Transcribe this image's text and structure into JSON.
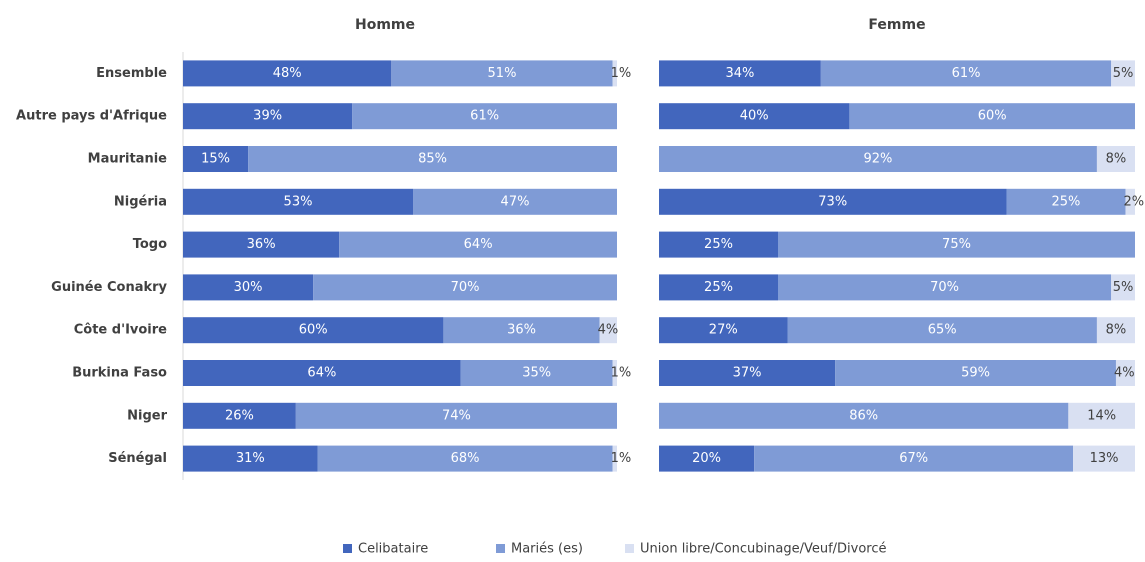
{
  "chart_data": [
    {
      "type": "stacked-bar-horizontal",
      "title": "Homme",
      "categories": [
        "Ensemble",
        "Autre pays d'Afrique",
        "Mauritanie",
        "Nigéria",
        "Togo",
        "Guinée Conakry",
        "Côte d'Ivoire",
        "Burkina Faso",
        "Niger",
        "Sénégal"
      ],
      "xlim": [
        0,
        100
      ],
      "series": [
        {
          "name": "Celibataire",
          "color": "#4266bd",
          "values": [
            48,
            39,
            15,
            53,
            36,
            30,
            60,
            64,
            26,
            31
          ],
          "value_labels": [
            "48%",
            "39%",
            "15%",
            "53%",
            "36%",
            "30%",
            "60%",
            "64%",
            "26%",
            "31%"
          ]
        },
        {
          "name": "Mariés (es)",
          "color": "#7f9bd6",
          "values": [
            51,
            61,
            85,
            47,
            64,
            70,
            36,
            35,
            74,
            68
          ],
          "value_labels": [
            "51%",
            "61%",
            "85%",
            "47%",
            "64%",
            "70%",
            "36%",
            "35%",
            "74%",
            "68%"
          ]
        },
        {
          "name": "Union libre/Concubinage/Veuf/Divorcé",
          "color": "#d9e0f2",
          "values": [
            1,
            null,
            null,
            null,
            null,
            null,
            4,
            1,
            null,
            1
          ],
          "value_labels": [
            "1%",
            null,
            null,
            null,
            null,
            null,
            "4%",
            "1%",
            null,
            "1%"
          ]
        }
      ]
    },
    {
      "type": "stacked-bar-horizontal",
      "title": "Femme",
      "xlim": [
        0,
        100
      ],
      "series": [
        {
          "color": "#4266bd",
          "values": [
            34,
            40,
            null,
            73,
            25,
            25,
            27,
            37,
            null,
            20
          ],
          "value_labels": [
            "34%",
            "40%",
            null,
            "73%",
            "25%",
            "25%",
            "27%",
            "37%",
            null,
            "20%"
          ]
        },
        {
          "color": "#7f9bd6",
          "values": [
            61,
            60,
            92,
            25,
            75,
            70,
            65,
            59,
            86,
            67
          ],
          "value_labels": [
            "61%",
            "60%",
            "92%",
            "25%",
            "75%",
            "70%",
            "65%",
            "59%",
            "86%",
            "67%"
          ]
        },
        {
          "color": "#d9e0f2",
          "values": [
            5,
            null,
            8,
            2,
            null,
            5,
            8,
            4,
            14,
            13
          ],
          "value_labels": [
            "5%",
            null,
            "8%",
            "2%",
            null,
            "5%",
            "8%",
            "4%",
            "14%",
            "13%"
          ]
        }
      ]
    }
  ]
}
